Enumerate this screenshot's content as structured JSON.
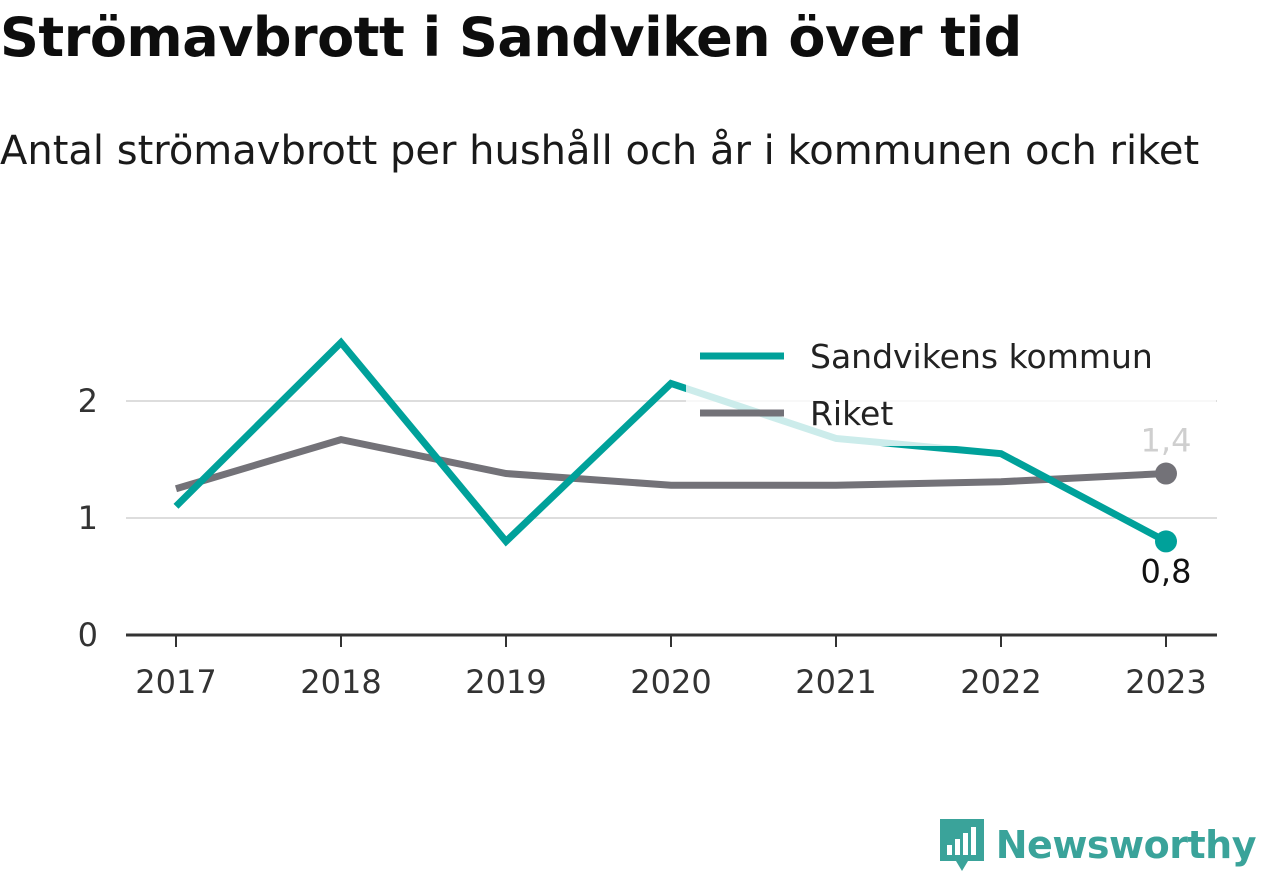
{
  "title": "Strömavbrott i Sandviken över tid",
  "subtitle": "Antal strömavbrott per hushåll och år i kommunen och riket",
  "brand": {
    "name": "Newsworthy",
    "icon": "newsworthy-logo-icon"
  },
  "colors": {
    "kommun": "#00a19a",
    "riket": "#737278",
    "grid": "#dddddd",
    "axis": "#333333",
    "brand": "#3aa39a"
  },
  "chart_data": {
    "type": "line",
    "x": [
      "2017",
      "2018",
      "2019",
      "2020",
      "2021",
      "2022",
      "2023"
    ],
    "series": [
      {
        "name": "Sandvikens kommun",
        "values": [
          1.1,
          2.5,
          0.8,
          2.15,
          1.68,
          1.55,
          0.8
        ],
        "end_label": "0,8"
      },
      {
        "name": "Riket",
        "values": [
          1.25,
          1.67,
          1.38,
          1.28,
          1.28,
          1.31,
          1.38
        ],
        "end_label": "1,4"
      }
    ],
    "y_ticks": [
      "0",
      "1",
      "2"
    ],
    "ylim": [
      0,
      2.6
    ],
    "grid": true,
    "legend_position": "top-right"
  }
}
